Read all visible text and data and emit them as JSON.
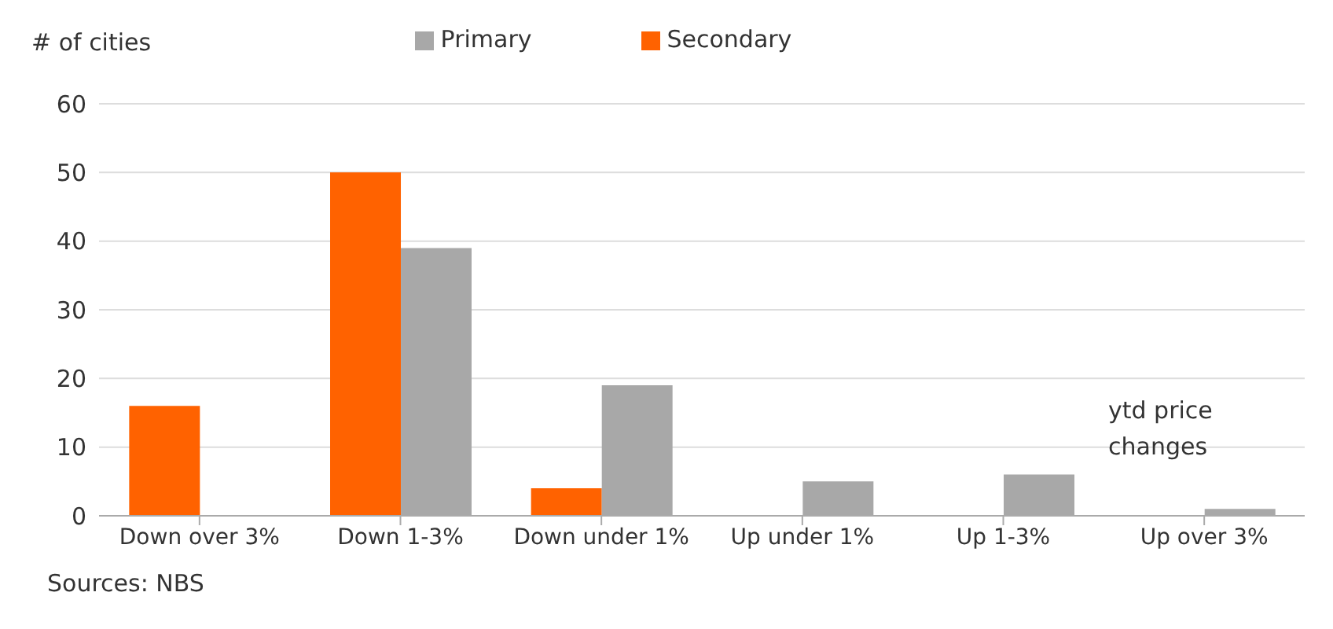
{
  "chart_data": {
    "type": "bar",
    "ylabel": "# of cities",
    "categories": [
      "Down over 3%",
      "Down 1-3%",
      "Down under 1%",
      "Up under 1%",
      "Up 1-3%",
      "Up over 3%"
    ],
    "series": [
      {
        "name": "Secondary",
        "color": "#ff6200",
        "values": [
          16,
          50,
          4,
          0,
          0,
          0
        ]
      },
      {
        "name": "Primary",
        "color": "#a8a8a8",
        "values": [
          0,
          39,
          19,
          5,
          6,
          1
        ]
      }
    ],
    "ylim": [
      0,
      60
    ],
    "yticks": [
      0,
      10,
      20,
      30,
      40,
      50,
      60
    ],
    "grid": "y",
    "legend": "top",
    "annotations": [
      "ytd price changes",
      "Sources: NBS"
    ]
  }
}
